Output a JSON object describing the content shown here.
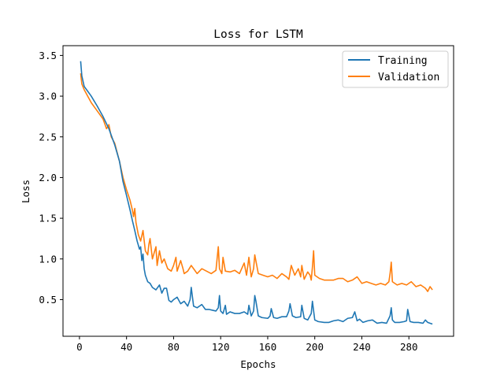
{
  "chart_data": {
    "type": "line",
    "title": "Loss for LSTM",
    "xlabel": "Epochs",
    "ylabel": "Loss",
    "xlim": [
      -14,
      318
    ],
    "ylim": [
      0.05,
      3.62
    ],
    "xticks": [
      0,
      40,
      80,
      120,
      160,
      200,
      240,
      280
    ],
    "yticks": [
      0.5,
      1.0,
      1.5,
      2.0,
      2.5,
      3.0,
      3.5
    ],
    "xtick_labels": [
      "0",
      "40",
      "80",
      "120",
      "160",
      "200",
      "240",
      "280"
    ],
    "ytick_labels": [
      "0.5",
      "1.0",
      "1.5",
      "2.0",
      "2.5",
      "3.0",
      "3.5"
    ],
    "grid": false,
    "legend_position": "top-right",
    "series": [
      {
        "name": "Training",
        "color": "#1f77b4",
        "x": [
          1,
          2,
          4,
          7,
          10,
          15,
          20,
          25,
          30,
          34,
          37,
          40,
          43,
          45,
          47,
          49,
          51,
          52,
          53,
          54,
          55,
          56,
          58,
          60,
          62,
          65,
          68,
          70,
          72,
          74,
          76,
          78,
          80,
          83,
          86,
          89,
          92,
          94,
          95,
          97,
          100,
          104,
          107,
          110,
          113,
          116,
          118,
          119,
          120,
          122,
          124,
          125,
          128,
          132,
          136,
          140,
          143,
          144,
          146,
          148,
          149,
          150,
          152,
          155,
          160,
          162,
          163,
          165,
          168,
          172,
          176,
          178,
          179,
          181,
          184,
          188,
          189,
          191,
          194,
          197,
          198,
          200,
          203,
          208,
          212,
          216,
          220,
          224,
          228,
          232,
          234,
          236,
          238,
          241,
          245,
          249,
          253,
          257,
          261,
          264,
          265,
          266,
          268,
          272,
          276,
          278,
          279,
          281,
          284,
          288,
          292,
          294,
          296,
          298,
          300
        ],
        "y": [
          3.43,
          3.25,
          3.12,
          3.06,
          3.0,
          2.88,
          2.75,
          2.6,
          2.4,
          2.2,
          1.95,
          1.78,
          1.6,
          1.47,
          1.35,
          1.22,
          1.12,
          1.15,
          0.98,
          1.06,
          0.88,
          0.8,
          0.72,
          0.7,
          0.65,
          0.62,
          0.68,
          0.58,
          0.64,
          0.64,
          0.49,
          0.47,
          0.5,
          0.53,
          0.45,
          0.48,
          0.42,
          0.5,
          0.65,
          0.42,
          0.4,
          0.44,
          0.38,
          0.38,
          0.37,
          0.36,
          0.4,
          0.55,
          0.36,
          0.33,
          0.43,
          0.32,
          0.35,
          0.33,
          0.33,
          0.35,
          0.32,
          0.43,
          0.3,
          0.36,
          0.55,
          0.48,
          0.3,
          0.28,
          0.27,
          0.3,
          0.39,
          0.28,
          0.27,
          0.29,
          0.29,
          0.36,
          0.45,
          0.3,
          0.28,
          0.29,
          0.43,
          0.27,
          0.25,
          0.33,
          0.48,
          0.25,
          0.23,
          0.22,
          0.22,
          0.24,
          0.25,
          0.23,
          0.27,
          0.28,
          0.35,
          0.24,
          0.26,
          0.22,
          0.24,
          0.25,
          0.21,
          0.22,
          0.21,
          0.3,
          0.4,
          0.25,
          0.22,
          0.22,
          0.23,
          0.24,
          0.38,
          0.23,
          0.22,
          0.22,
          0.21,
          0.25,
          0.22,
          0.21,
          0.2
        ]
      },
      {
        "name": "Validation",
        "color": "#ff7f0e",
        "x": [
          1,
          2,
          4,
          7,
          10,
          15,
          20,
          23,
          25,
          27,
          30,
          34,
          37,
          40,
          43,
          45,
          46,
          47,
          48,
          50,
          52,
          54,
          56,
          58,
          59,
          60,
          62,
          65,
          66,
          68,
          70,
          72,
          75,
          78,
          80,
          82,
          83,
          86,
          88,
          89,
          92,
          95,
          98,
          100,
          104,
          108,
          112,
          116,
          118,
          119,
          121,
          122,
          124,
          128,
          132,
          136,
          140,
          142,
          144,
          146,
          148,
          149,
          152,
          156,
          160,
          164,
          168,
          172,
          176,
          178,
          180,
          183,
          186,
          188,
          189,
          191,
          194,
          196,
          197,
          198,
          199,
          200,
          204,
          208,
          212,
          216,
          220,
          224,
          228,
          232,
          236,
          240,
          244,
          248,
          252,
          256,
          260,
          263,
          264,
          265,
          266,
          270,
          274,
          278,
          282,
          286,
          290,
          294,
          296,
          298,
          300
        ],
        "y": [
          3.28,
          3.15,
          3.08,
          3.0,
          2.92,
          2.82,
          2.72,
          2.6,
          2.65,
          2.5,
          2.42,
          2.2,
          2.0,
          1.85,
          1.72,
          1.6,
          1.52,
          1.62,
          1.45,
          1.3,
          1.22,
          1.35,
          1.1,
          1.05,
          1.18,
          1.25,
          1.0,
          1.15,
          0.92,
          1.1,
          0.95,
          1.0,
          0.88,
          0.85,
          0.92,
          1.02,
          0.85,
          0.98,
          0.88,
          0.82,
          0.85,
          0.92,
          0.86,
          0.82,
          0.88,
          0.85,
          0.82,
          0.86,
          1.15,
          0.88,
          0.82,
          1.02,
          0.85,
          0.84,
          0.86,
          0.82,
          0.95,
          0.8,
          1.02,
          0.78,
          0.88,
          1.05,
          0.82,
          0.8,
          0.78,
          0.8,
          0.76,
          0.82,
          0.78,
          0.75,
          0.92,
          0.8,
          0.88,
          0.78,
          0.92,
          0.75,
          0.84,
          0.8,
          0.74,
          0.9,
          1.1,
          0.8,
          0.76,
          0.74,
          0.74,
          0.74,
          0.76,
          0.76,
          0.72,
          0.74,
          0.78,
          0.7,
          0.72,
          0.7,
          0.68,
          0.7,
          0.68,
          0.72,
          0.82,
          0.96,
          0.72,
          0.68,
          0.7,
          0.68,
          0.72,
          0.66,
          0.68,
          0.64,
          0.6,
          0.66,
          0.62
        ]
      }
    ]
  }
}
